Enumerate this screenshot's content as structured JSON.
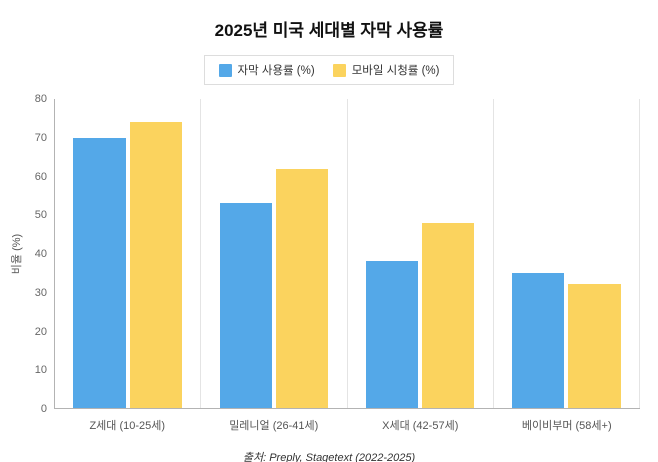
{
  "title": "2025년 미국 세대별 자막 사용률",
  "legend": {
    "items": [
      {
        "label": "자막 사용률 (%)",
        "color": "#54A8E8"
      },
      {
        "label": "모바일 시청률 (%)",
        "color": "#FBD35E"
      }
    ]
  },
  "chart_data": {
    "type": "bar",
    "title": "2025년 미국 세대별 자막 사용률",
    "categories": [
      "Z세대 (10-25세)",
      "밀레니얼 (26-41세)",
      "X세대 (42-57세)",
      "베이비부머 (58세+)"
    ],
    "series": [
      {
        "name": "자막 사용률 (%)",
        "color": "#54A8E8",
        "values": [
          70,
          53,
          38,
          35
        ]
      },
      {
        "name": "모바일 시청률 (%)",
        "color": "#FBD35E",
        "values": [
          74,
          62,
          48,
          32
        ]
      }
    ],
    "xlabel": "",
    "ylabel": "비율 (%)",
    "ylim": [
      0,
      80
    ],
    "ytick_step": 10,
    "grid": "vertical-category-separators",
    "legend_position": "top"
  },
  "source": "출처: Preply, Stagetext (2022-2025)"
}
